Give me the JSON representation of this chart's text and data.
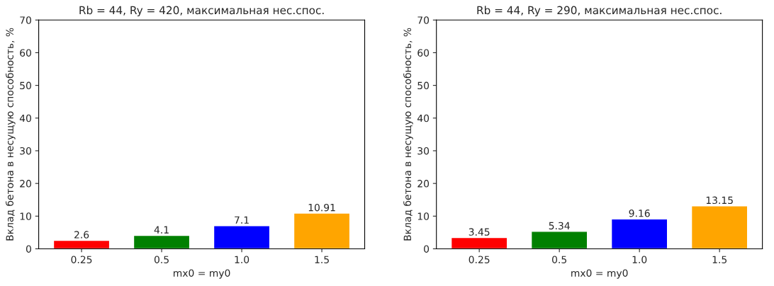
{
  "chart_data": [
    {
      "type": "bar",
      "title": "Rb = 44, Ry = 420, максимальная нес.спос.",
      "xlabel": "mx0 = my0",
      "ylabel": "Вклад бетона в несущую способность, %",
      "categories": [
        "0.25",
        "0.5",
        "1.0",
        "1.5"
      ],
      "values": [
        2.6,
        4.1,
        7.1,
        10.91
      ],
      "colors": [
        "#ff0000",
        "#008000",
        "#0000ff",
        "#ffa500"
      ],
      "ylim": [
        0,
        70
      ],
      "yticks": [
        0,
        10,
        20,
        30,
        40,
        50,
        60,
        70
      ],
      "data_labels": true,
      "grid": false,
      "legend": false
    },
    {
      "type": "bar",
      "title": "Rb = 44, Ry = 290, максимальная нес.спос.",
      "xlabel": "mx0 = my0",
      "ylabel": "Вклад бетона в несущую способность, %",
      "categories": [
        "0.25",
        "0.5",
        "1.0",
        "1.5"
      ],
      "values": [
        3.45,
        5.34,
        9.16,
        13.15
      ],
      "colors": [
        "#ff0000",
        "#008000",
        "#0000ff",
        "#ffa500"
      ],
      "ylim": [
        0,
        70
      ],
      "yticks": [
        0,
        10,
        20,
        30,
        40,
        50,
        60,
        70
      ],
      "data_labels": true,
      "grid": false,
      "legend": false
    }
  ]
}
